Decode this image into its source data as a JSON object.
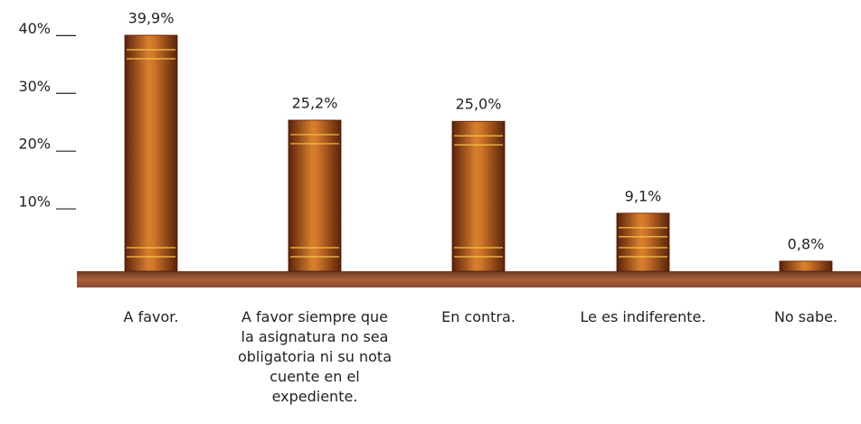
{
  "chart_data": {
    "type": "bar",
    "categories": [
      "A favor.",
      "A favor siempre que la asignatura no sea obligatoria ni su nota cuente en el expediente.",
      "En contra.",
      "Le es indiferente.",
      "No sabe."
    ],
    "values": [
      39.9,
      25.2,
      25.0,
      9.1,
      0.8
    ],
    "value_labels": [
      "39,9%",
      "25,2%",
      "25,0%",
      "9,1%",
      "0,8%"
    ],
    "color": "#b85d22",
    "ylim": [
      0,
      46
    ],
    "yticks": [
      {
        "value": 10,
        "label": "10%"
      },
      {
        "value": 20,
        "label": "20%"
      },
      {
        "value": 30,
        "label": "30%"
      },
      {
        "value": 40,
        "label": "40%"
      }
    ]
  }
}
